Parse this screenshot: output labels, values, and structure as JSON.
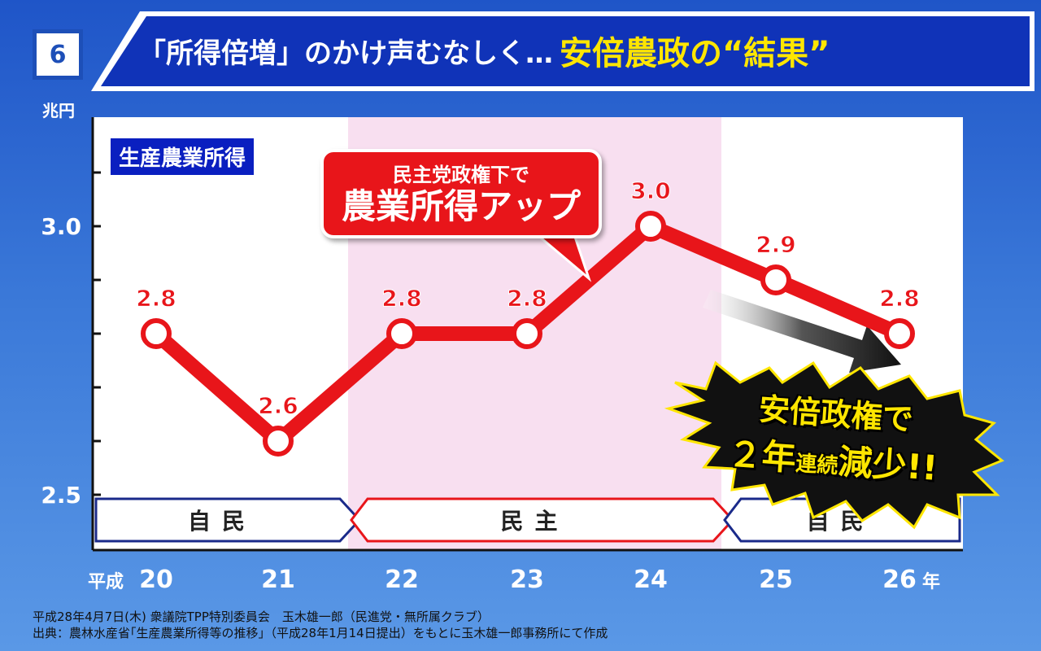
{
  "slide_number": "6",
  "title": {
    "prefix": "「所得倍増」のかけ声むなしく…",
    "main": "安倍農政の“結果”"
  },
  "unit": "兆円",
  "legend_tag": "生産農業所得",
  "callout": {
    "line1": "民主党政権下で",
    "line2": "農業所得アップ"
  },
  "burst": {
    "line1": "安倍政権で",
    "line2a": "２年",
    "line2b": "連続",
    "line2c": "減少!!"
  },
  "eras": [
    {
      "label": "自民",
      "from": "20",
      "to": "21",
      "color": "#1a2a8a"
    },
    {
      "label": "民主",
      "from": "21",
      "to": "24",
      "color": "#e8151a"
    },
    {
      "label": "自民",
      "from": "24",
      "to": "26",
      "color": "#1a2a8a"
    }
  ],
  "x_prefix": "平成",
  "x_suffix": "年",
  "source": {
    "line1": "平成28年4月7日(木) 衆議院TPP特別委員会　玉木雄一郎（民進党・無所属クラブ）",
    "line2": "出典：農林水産省｢生産農業所得等の推移｣（平成28年1月14日提出）をもとに玉木雄一郎事務所にて作成"
  },
  "colors": {
    "line": "#e8151a",
    "liberal_bg": "#ffffff",
    "dpj_bg": "#f8dff0",
    "background": "#2f6cd3"
  },
  "chart_data": {
    "type": "line",
    "categories": [
      "20",
      "21",
      "22",
      "23",
      "24",
      "25",
      "26"
    ],
    "values": [
      2.8,
      2.6,
      2.8,
      2.8,
      3.0,
      2.9,
      2.8
    ],
    "data_labels": [
      "2.8",
      "2.6",
      "2.8",
      "2.8",
      "3.0",
      "2.9",
      "2.8"
    ],
    "y_ticks": [
      "2.5",
      "3.0"
    ],
    "ylabel": "兆円",
    "ylim": [
      2.5,
      3.2
    ],
    "grid": false
  }
}
